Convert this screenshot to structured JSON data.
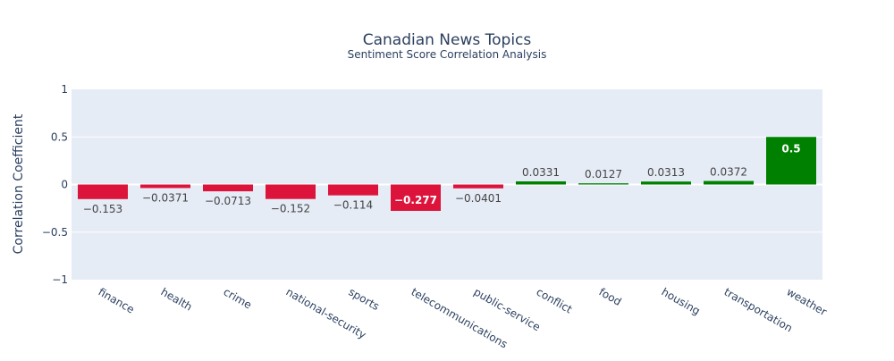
{
  "chart_data": {
    "type": "bar",
    "title": "Canadian News Topics",
    "subtitle": "Sentiment Score Correlation Analysis",
    "xlabel": "",
    "ylabel": "Correlation Coefficient",
    "ylim": [
      -1,
      1
    ],
    "yticks": [
      1,
      0.5,
      0,
      -0.5,
      -1
    ],
    "ytick_labels": [
      "1",
      "0.5",
      "0",
      "−0.5",
      "−1"
    ],
    "grid": true,
    "legend": "none",
    "categories": [
      "finance",
      "health",
      "crime",
      "national-security",
      "sports",
      "telecommunications",
      "public-service",
      "conflict",
      "food",
      "housing",
      "transportation",
      "weather"
    ],
    "values": [
      -0.153,
      -0.0371,
      -0.0713,
      -0.152,
      -0.114,
      -0.277,
      -0.0401,
      0.0331,
      0.0127,
      0.0313,
      0.0372,
      0.5
    ],
    "value_labels": [
      "−0.153",
      "−0.0371",
      "−0.0713",
      "−0.152",
      "−0.114",
      "−0.277",
      "−0.0401",
      "0.0331",
      "0.0127",
      "0.0313",
      "0.0372",
      "0.5"
    ],
    "colors": {
      "negative": "#dc143c",
      "positive": "#008000",
      "plot_bg": "#e5ecf6",
      "grid": "#ffffff",
      "text": "#2a3f5f",
      "label_dark": "#444444"
    }
  }
}
